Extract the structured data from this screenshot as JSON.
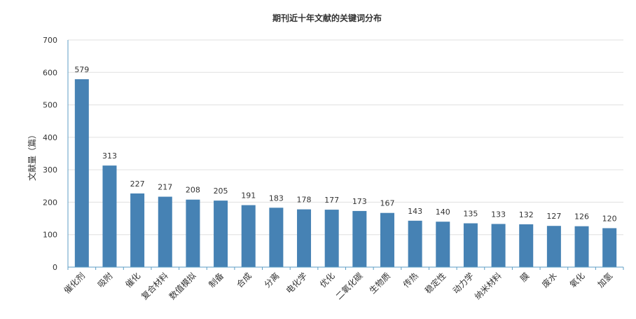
{
  "chart_data": {
    "type": "bar",
    "title": "期刊近十年文献的关键词分布",
    "xlabel": "",
    "ylabel": "文献量（篇）",
    "ylim": [
      0,
      700
    ],
    "yticks": [
      0,
      100,
      200,
      300,
      400,
      500,
      600,
      700
    ],
    "grid": true,
    "bar_color": "#4682b4",
    "categories": [
      "催化剂",
      "吸附",
      "催化",
      "复合材料",
      "数值模拟",
      "制备",
      "合成",
      "分离",
      "电化学",
      "优化",
      "二氧化碳",
      "生物质",
      "传热",
      "稳定性",
      "动力学",
      "纳米材料",
      "膜",
      "废水",
      "氧化",
      "加氢"
    ],
    "values": [
      579,
      313,
      227,
      217,
      208,
      205,
      191,
      183,
      178,
      177,
      173,
      167,
      143,
      140,
      135,
      133,
      132,
      127,
      126,
      120
    ]
  }
}
